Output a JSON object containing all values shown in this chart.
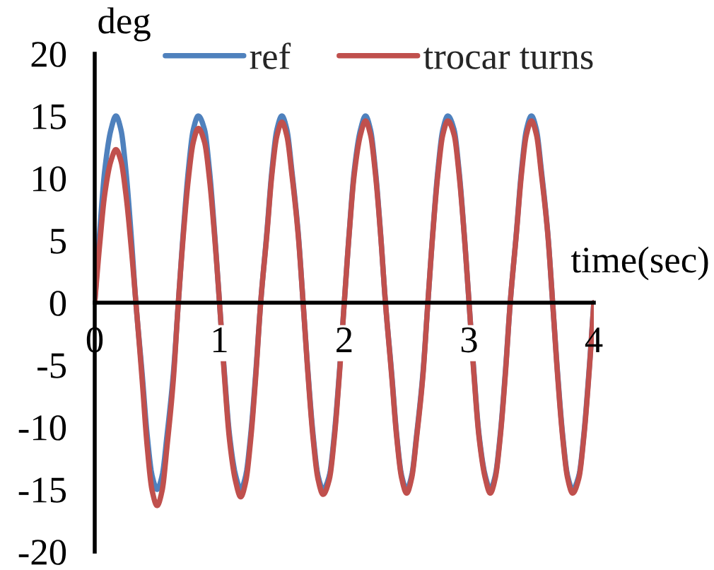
{
  "chart_data": {
    "type": "line",
    "xlabel": "time(sec)",
    "ylabel": "deg",
    "x": [
      0,
      0.04,
      0.08,
      0.13,
      0.17,
      0.21,
      0.25,
      0.29,
      0.33,
      0.38,
      0.42,
      0.46,
      0.5,
      0.54,
      0.58,
      0.63,
      0.67,
      0.71,
      0.75,
      0.79,
      0.83,
      0.88,
      0.92,
      0.96,
      1.0,
      1.04,
      1.08,
      1.13,
      1.17,
      1.21,
      1.25,
      1.29,
      1.33,
      1.38,
      1.42,
      1.46,
      1.5,
      1.54,
      1.58,
      1.63,
      1.67,
      1.71,
      1.75,
      1.79,
      1.83,
      1.88,
      1.92,
      1.96,
      2.0,
      2.04,
      2.08,
      2.13,
      2.17,
      2.21,
      2.25,
      2.29,
      2.33,
      2.38,
      2.42,
      2.46,
      2.5,
      2.54,
      2.58,
      2.63,
      2.67,
      2.71,
      2.75,
      2.79,
      2.83,
      2.88,
      2.92,
      2.96,
      3.0,
      3.04,
      3.08,
      3.13,
      3.17,
      3.21,
      3.25,
      3.29,
      3.33,
      3.38,
      3.42,
      3.46,
      3.5,
      3.54,
      3.58,
      3.63,
      3.67,
      3.71,
      3.75,
      3.79,
      3.83,
      3.88,
      3.92,
      3.96,
      4.0
    ],
    "series": [
      {
        "name": "ref",
        "color": "#4f81bd",
        "values": [
          0,
          5.7,
          10.6,
          13.9,
          15,
          13.9,
          10.6,
          5.7,
          0,
          -5.7,
          -10.6,
          -13.9,
          -15,
          -13.9,
          -10.6,
          -5.7,
          0,
          5.7,
          10.6,
          13.9,
          15,
          13.9,
          10.6,
          5.7,
          0,
          -5.7,
          -10.6,
          -13.9,
          -15,
          -13.9,
          -10.6,
          -5.7,
          0,
          5.7,
          10.6,
          13.9,
          15,
          13.9,
          10.6,
          5.7,
          0,
          -5.7,
          -10.6,
          -13.9,
          -15,
          -13.9,
          -10.6,
          -5.7,
          0,
          5.7,
          10.6,
          13.9,
          15,
          13.9,
          10.6,
          5.7,
          0,
          -5.7,
          -10.6,
          -13.9,
          -15,
          -13.9,
          -10.6,
          -5.7,
          0,
          5.7,
          10.6,
          13.9,
          15,
          13.9,
          10.6,
          5.7,
          0,
          -5.7,
          -10.6,
          -13.9,
          -15,
          -13.9,
          -10.6,
          -5.7,
          0,
          5.7,
          10.6,
          13.9,
          15,
          13.9,
          10.6,
          5.7,
          0,
          -5.7,
          -10.6,
          -13.9,
          -15,
          -13.9,
          -10.6,
          -5.7,
          0
        ]
      },
      {
        "name": "trocar turns",
        "color": "#c0504d",
        "values": [
          0,
          4.7,
          8.7,
          11.4,
          12.3,
          11.4,
          8.7,
          4.7,
          0,
          -6.2,
          -11.5,
          -15.1,
          -16.3,
          -15.1,
          -11.5,
          -6.2,
          0,
          5.4,
          9.9,
          12.9,
          14.0,
          12.9,
          9.9,
          5.4,
          0,
          -6.0,
          -11.0,
          -14.4,
          -15.6,
          -14.4,
          -11.0,
          -6.0,
          0,
          5.5,
          10.3,
          13.4,
          14.5,
          13.4,
          10.3,
          5.5,
          0,
          -5.9,
          -10.9,
          -14.2,
          -15.4,
          -14.2,
          -10.9,
          -5.9,
          0,
          5.6,
          10.3,
          13.5,
          14.6,
          13.5,
          10.3,
          5.6,
          0,
          -5.9,
          -10.8,
          -14.1,
          -15.3,
          -14.1,
          -10.8,
          -5.9,
          0,
          5.6,
          10.3,
          13.5,
          14.6,
          13.5,
          10.3,
          5.6,
          0,
          -5.9,
          -10.8,
          -14.1,
          -15.3,
          -14.1,
          -10.8,
          -5.9,
          0,
          5.6,
          10.3,
          13.5,
          14.6,
          13.5,
          10.3,
          5.6,
          0,
          -5.9,
          -10.8,
          -14.1,
          -15.3,
          -14.1,
          -10.8,
          -5.9,
          0
        ]
      }
    ],
    "xlim": [
      0,
      4
    ],
    "ylim": [
      -20,
      20
    ],
    "xticks": [
      0,
      1,
      2,
      3,
      4
    ],
    "yticks": [
      -20,
      -15,
      -10,
      -5,
      0,
      5,
      10,
      15,
      20
    ],
    "legend": "top"
  }
}
